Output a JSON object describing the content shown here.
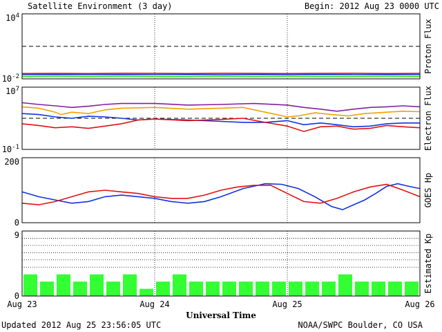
{
  "header": {
    "title": "Satellite Environment (3 day)",
    "begin": "Begin:  2012 Aug 23 0000 UTC"
  },
  "footer": {
    "updated": "Updated 2012 Aug 25 23:56:05 UTC",
    "credit": "NOAA/SWPC Boulder, CO USA"
  },
  "colors": {
    "red": "#e01010",
    "blue": "#1030e0",
    "green": "#20e020",
    "orange": "#f0a000",
    "purple": "#8020a0",
    "kp_bar": "#33ff33"
  },
  "chart_data": [
    {
      "type": "line",
      "ylabel": "Proton Flux",
      "scale": "log",
      "ylim": [
        0.01,
        10000
      ],
      "yticks": [
        {
          "value": 10000,
          "label": "10",
          "sup": "4"
        },
        {
          "value": 0.01,
          "label": "10",
          "sup": "-2"
        }
      ],
      "threshold": 10,
      "x_range_hours": [
        0,
        72
      ],
      "series": [
        {
          "color": "red",
          "points": [
            [
              0,
              0.031
            ],
            [
              6,
              0.032
            ],
            [
              12,
              0.031
            ],
            [
              18,
              0.033
            ],
            [
              24,
              0.032
            ],
            [
              30,
              0.031
            ],
            [
              36,
              0.033
            ],
            [
              42,
              0.032
            ],
            [
              48,
              0.031
            ],
            [
              54,
              0.032
            ],
            [
              60,
              0.033
            ],
            [
              66,
              0.031
            ],
            [
              72,
              0.032
            ]
          ]
        },
        {
          "color": "blue",
          "points": [
            [
              0,
              0.024
            ],
            [
              6,
              0.025
            ],
            [
              12,
              0.024
            ],
            [
              18,
              0.025
            ],
            [
              24,
              0.024
            ],
            [
              30,
              0.025
            ],
            [
              36,
              0.024
            ],
            [
              42,
              0.025
            ],
            [
              48,
              0.024
            ],
            [
              54,
              0.025
            ],
            [
              60,
              0.024
            ],
            [
              66,
              0.025
            ],
            [
              72,
              0.024
            ]
          ]
        },
        {
          "color": "green",
          "points": [
            [
              0,
              0.016
            ],
            [
              6,
              0.017
            ],
            [
              12,
              0.016
            ],
            [
              18,
              0.017
            ],
            [
              24,
              0.016
            ],
            [
              30,
              0.016
            ],
            [
              36,
              0.017
            ],
            [
              42,
              0.016
            ],
            [
              48,
              0.017
            ],
            [
              54,
              0.016
            ],
            [
              60,
              0.016
            ],
            [
              66,
              0.017
            ],
            [
              72,
              0.016
            ]
          ]
        }
      ]
    },
    {
      "type": "line",
      "ylabel": "Electron Flux",
      "scale": "log",
      "ylim": [
        0.1,
        10000000
      ],
      "yticks": [
        {
          "value": 10000000,
          "label": "10",
          "sup": "7"
        },
        {
          "value": 0.1,
          "label": "10",
          "sup": "-1"
        }
      ],
      "threshold": 1000,
      "x_range_hours": [
        0,
        72
      ],
      "series": [
        {
          "color": "purple",
          "points": [
            [
              0,
              100000
            ],
            [
              3,
              60000
            ],
            [
              6,
              40000
            ],
            [
              9,
              25000
            ],
            [
              12,
              35000
            ],
            [
              15,
              60000
            ],
            [
              18,
              80000
            ],
            [
              24,
              80000
            ],
            [
              30,
              50000
            ],
            [
              36,
              60000
            ],
            [
              42,
              80000
            ],
            [
              48,
              50000
            ],
            [
              51,
              25000
            ],
            [
              54,
              15000
            ],
            [
              57,
              8000
            ],
            [
              60,
              15000
            ],
            [
              63,
              25000
            ],
            [
              66,
              30000
            ],
            [
              69,
              40000
            ],
            [
              72,
              30000
            ]
          ]
        },
        {
          "color": "orange",
          "points": [
            [
              0,
              30000
            ],
            [
              3,
              20000
            ],
            [
              6,
              6000
            ],
            [
              7,
              3000
            ],
            [
              9,
              6000
            ],
            [
              12,
              4000
            ],
            [
              15,
              12000
            ],
            [
              18,
              20000
            ],
            [
              24,
              25000
            ],
            [
              30,
              15000
            ],
            [
              36,
              20000
            ],
            [
              40,
              25000
            ],
            [
              44,
              6000
            ],
            [
              48,
              1500
            ],
            [
              50,
              2000
            ],
            [
              53,
              5000
            ],
            [
              56,
              3000
            ],
            [
              59,
              2000
            ],
            [
              62,
              4000
            ],
            [
              66,
              6000
            ],
            [
              69,
              8000
            ],
            [
              72,
              7000
            ]
          ]
        },
        {
          "color": "blue",
          "points": [
            [
              0,
              4000
            ],
            [
              3,
              3000
            ],
            [
              6,
              1500
            ],
            [
              9,
              1000
            ],
            [
              12,
              1800
            ],
            [
              15,
              1500
            ],
            [
              18,
              1000
            ],
            [
              21,
              600
            ],
            [
              24,
              800
            ],
            [
              30,
              600
            ],
            [
              36,
              400
            ],
            [
              40,
              300
            ],
            [
              44,
              300
            ],
            [
              48,
              500
            ],
            [
              51,
              150
            ],
            [
              54,
              250
            ],
            [
              57,
              150
            ],
            [
              60,
              80
            ],
            [
              63,
              100
            ],
            [
              66,
              200
            ],
            [
              69,
              250
            ],
            [
              72,
              250
            ]
          ]
        },
        {
          "color": "red",
          "points": [
            [
              0,
              200
            ],
            [
              3,
              120
            ],
            [
              6,
              60
            ],
            [
              9,
              80
            ],
            [
              12,
              50
            ],
            [
              15,
              100
            ],
            [
              18,
              200
            ],
            [
              21,
              600
            ],
            [
              24,
              800
            ],
            [
              30,
              500
            ],
            [
              36,
              700
            ],
            [
              40,
              1000
            ],
            [
              44,
              300
            ],
            [
              48,
              100
            ],
            [
              51,
              20
            ],
            [
              54,
              80
            ],
            [
              57,
              100
            ],
            [
              60,
              40
            ],
            [
              63,
              50
            ],
            [
              66,
              120
            ],
            [
              69,
              80
            ],
            [
              72,
              60
            ]
          ]
        }
      ]
    },
    {
      "type": "line",
      "ylabel": "GOES Hp",
      "scale": "linear",
      "ylim": [
        0,
        200
      ],
      "yticks": [
        {
          "value": 200,
          "label": "200"
        },
        {
          "value": 0,
          "label": "0"
        }
      ],
      "x_range_hours": [
        0,
        72
      ],
      "series": [
        {
          "color": "blue",
          "points": [
            [
              0,
              95
            ],
            [
              3,
              80
            ],
            [
              6,
              70
            ],
            [
              9,
              60
            ],
            [
              12,
              65
            ],
            [
              15,
              80
            ],
            [
              18,
              85
            ],
            [
              21,
              80
            ],
            [
              24,
              75
            ],
            [
              27,
              65
            ],
            [
              30,
              60
            ],
            [
              33,
              65
            ],
            [
              36,
              80
            ],
            [
              40,
              105
            ],
            [
              44,
              120
            ],
            [
              47,
              118
            ],
            [
              50,
              105
            ],
            [
              53,
              80
            ],
            [
              56,
              50
            ],
            [
              58,
              40
            ],
            [
              60,
              55
            ],
            [
              62,
              70
            ],
            [
              64,
              90
            ],
            [
              66,
              112
            ],
            [
              68,
              120
            ],
            [
              70,
              112
            ],
            [
              72,
              105
            ]
          ]
        },
        {
          "color": "red",
          "points": [
            [
              0,
              60
            ],
            [
              3,
              55
            ],
            [
              6,
              65
            ],
            [
              9,
              80
            ],
            [
              12,
              95
            ],
            [
              15,
              100
            ],
            [
              18,
              95
            ],
            [
              21,
              90
            ],
            [
              24,
              80
            ],
            [
              27,
              75
            ],
            [
              30,
              75
            ],
            [
              33,
              85
            ],
            [
              36,
              100
            ],
            [
              39,
              110
            ],
            [
              42,
              115
            ],
            [
              45,
              115
            ],
            [
              48,
              90
            ],
            [
              51,
              65
            ],
            [
              54,
              60
            ],
            [
              57,
              75
            ],
            [
              60,
              95
            ],
            [
              63,
              110
            ],
            [
              66,
              118
            ],
            [
              69,
              100
            ],
            [
              72,
              80
            ]
          ]
        }
      ]
    },
    {
      "type": "bar",
      "ylabel": "Estimated Kp",
      "ylim": [
        0,
        9
      ],
      "yticks": [
        {
          "value": 9,
          "label": "9"
        },
        {
          "value": 0,
          "label": "0"
        }
      ],
      "grid_y": [
        4,
        5,
        6,
        7,
        8,
        9
      ],
      "x_range_hours": [
        0,
        72
      ],
      "bar_width_hours": 3,
      "values": [
        3,
        2,
        3,
        2,
        3,
        2,
        3,
        1,
        2,
        3,
        2,
        2,
        2,
        2,
        2,
        2,
        2,
        2,
        2,
        3,
        2,
        2,
        2,
        2
      ]
    }
  ],
  "x_axis": {
    "label": "Universal Time",
    "ticks": [
      {
        "hour": 0,
        "label": "Aug 23"
      },
      {
        "hour": 24,
        "label": "Aug 24"
      },
      {
        "hour": 48,
        "label": "Aug 25"
      },
      {
        "hour": 72,
        "label": "Aug 26"
      }
    ],
    "day_lines": [
      24,
      48
    ]
  }
}
